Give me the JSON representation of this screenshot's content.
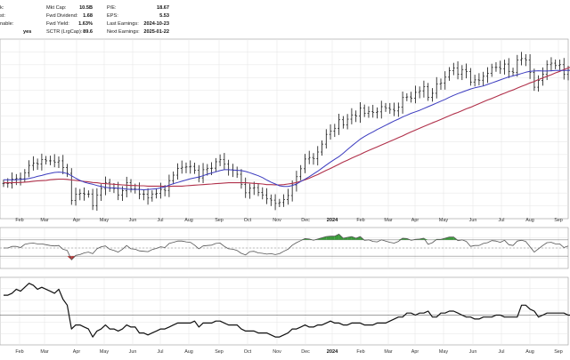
{
  "colors": {
    "background": "#ffffff",
    "grid": "#e3e3e3",
    "price_bars": "#111111",
    "sma_50": "#3b3bbf",
    "sma_200": "#b0304a",
    "indicator_line": "#555555",
    "overbought_fill": "#3a9a3a",
    "oversold_fill": "#c03030",
    "panel_border": "#999999",
    "relative_line": "#111111"
  },
  "header": {
    "left_labels": [
      "k:",
      "st:",
      "nable:",
      ""
    ],
    "left_values": [
      "",
      "",
      "",
      "yes"
    ],
    "fields": [
      {
        "label": "Mkt Cap:",
        "value": "10.5B"
      },
      {
        "label": "Fwd Dividend:",
        "value": "1.68"
      },
      {
        "label": "Fwd Yield:",
        "value": "1.63%"
      },
      {
        "label": "SCTR (LrgCap):",
        "value": "89.6"
      },
      {
        "label": "P/E:",
        "value": "18.67"
      },
      {
        "label": "EPS:",
        "value": "5.53"
      },
      {
        "label": "Last Earnings:",
        "value": "2024-10-23"
      },
      {
        "label": "Next Earnings:",
        "value": "2025-01-22"
      }
    ]
  },
  "chart_data": {
    "type": "line",
    "panels": [
      "price",
      "momentum-oscillator",
      "relative-strength"
    ],
    "x_axis": {
      "labels": [
        "Feb",
        "Mar",
        "Apr",
        "May",
        "Jun",
        "Jul",
        "Aug",
        "Sep",
        "Oct",
        "Nov",
        "Dec",
        "2024",
        "Feb",
        "Mar",
        "Apr",
        "May",
        "Jun",
        "Jul",
        "Aug",
        "Sep"
      ],
      "year_label": "2024"
    },
    "price_series": {
      "style": "ohlc-bars",
      "close": [
        73.6,
        73.6,
        75,
        75.2,
        75.1,
        77.1,
        79.5,
        80.3,
        80,
        81.4,
        81,
        81,
        80.6,
        81,
        78.8,
        76.9,
        68,
        70,
        70.3,
        70.1,
        70.1,
        66.3,
        69.8,
        71.9,
        73.9,
        72,
        71.9,
        69.8,
        71.2,
        73.8,
        71.8,
        71.7,
        70.1,
        70,
        68.8,
        70.1,
        70.3,
        71.6,
        71.3,
        74.5,
        76.3,
        78.5,
        78.9,
        79,
        79.2,
        77.9,
        75.4,
        78.1,
        78.5,
        78.6,
        80.7,
        81.4,
        79.9,
        78.1,
        77.9,
        76.6,
        73.3,
        70.5,
        72,
        72.2,
        70.6,
        69.8,
        68.5,
        68.1,
        67,
        67.3,
        68.3,
        69.6,
        73.1,
        75.8,
        78.4,
        81.6,
        82.1,
        81.7,
        83.9,
        86.5,
        89.7,
        90.8,
        91.7,
        94.5,
        92.8,
        94.7,
        96.1,
        95.7,
        98.3,
        96.6,
        97.2,
        96.9,
        97.1,
        98.8,
        98.3,
        97.9,
        97.4,
        98.7,
        101.8,
        102,
        101.6,
        103.5,
        104,
        105.4,
        101.9,
        103.2,
        106.3,
        106.6,
        108.5,
        110.6,
        111.5,
        109.5,
        111,
        110.3,
        106.9,
        107.6,
        107.5,
        108.8,
        109.8,
        111.7,
        111.7,
        111.3,
        112.8,
        110.4,
        110.1,
        114.1,
        114.6,
        114.1,
        110.1,
        105.2,
        107.4,
        109.5,
        112.6,
        113.1,
        112.3,
        112.6,
        109.4,
        110.8
      ],
      "y_axis_visible": false
    },
    "sma_50": [
      74.8,
      74.8,
      74.8,
      74.8,
      74.9,
      75,
      75.2,
      75.5,
      75.9,
      76.2,
      76.6,
      76.9,
      77.2,
      77.3,
      77.2,
      76.8,
      76.1,
      75.3,
      74.6,
      74,
      73.6,
      73.3,
      72.9,
      72.6,
      72.3,
      72.1,
      72.1,
      72,
      71.9,
      71.7,
      71.6,
      71.6,
      71.6,
      71.5,
      71.6,
      71.7,
      71.8,
      72.1,
      72.5,
      73,
      73.5,
      73.9,
      74.3,
      74.7,
      75.1,
      75.4,
      75.7,
      76.1,
      76.6,
      77,
      77.4,
      77.8,
      78.1,
      78.1,
      78,
      77.9,
      77.8,
      77.5,
      77.1,
      76.6,
      76.1,
      75.5,
      74.7,
      74,
      73.4,
      72.8,
      72.6,
      72.6,
      72.9,
      73.4,
      74.2,
      75,
      75.8,
      76.7,
      77.6,
      78.6,
      79.6,
      80.6,
      81.5,
      82.4,
      83.5,
      84.7,
      85.9,
      87,
      88.1,
      89,
      89.8,
      90.5,
      91.3,
      92,
      92.7,
      93.4,
      94.1,
      94.7,
      95.4,
      96,
      96.6,
      97.1,
      97.6,
      98.2,
      98.8,
      99.4,
      100,
      100.6,
      101.2,
      101.9,
      102.5,
      103.1,
      103.6,
      104.1,
      104.6,
      105,
      105.3,
      105.6,
      106.1,
      106.6,
      107.1,
      107.6,
      108.1,
      108.6,
      108.9,
      109.3,
      109.7,
      110.1,
      110.4,
      110.5,
      110.6,
      110.5,
      110.5,
      110.6,
      110.7,
      110.7,
      110.7,
      110.7,
      110.8
    ],
    "sma_200": [
      73.8,
      73.8,
      73.8,
      73.9,
      73.9,
      74,
      74.1,
      74.3,
      74.4,
      74.5,
      74.6,
      74.8,
      74.9,
      75,
      75,
      74.9,
      74.7,
      74.6,
      74.4,
      74.2,
      74.1,
      73.9,
      73.8,
      73.6,
      73.5,
      73.4,
      73.3,
      73.2,
      73.1,
      73,
      72.9,
      72.9,
      72.8,
      72.8,
      72.7,
      72.7,
      72.7,
      72.7,
      72.6,
      72.6,
      72.7,
      72.7,
      72.7,
      72.8,
      72.9,
      73,
      73.1,
      73.2,
      73.3,
      73.4,
      73.5,
      73.6,
      73.7,
      73.8,
      73.8,
      73.8,
      73.8,
      73.8,
      73.7,
      73.6,
      73.5,
      73.4,
      73.2,
      73.2,
      73.1,
      73.1,
      73.2,
      73.4,
      73.6,
      73.9,
      74.3,
      74.8,
      75.3,
      75.9,
      76.5,
      77.2,
      77.9,
      78.5,
      79.2,
      79.9,
      80.6,
      81.2,
      81.9,
      82.5,
      83.1,
      83.8,
      84.4,
      85,
      85.6,
      86.2,
      86.8,
      87.4,
      88,
      88.6,
      89.2,
      89.9,
      90.5,
      91.1,
      91.7,
      92.3,
      92.9,
      93.5,
      94,
      94.6,
      95.2,
      95.8,
      96.4,
      96.9,
      97.5,
      98.1,
      98.6,
      99.2,
      99.8,
      100.4,
      101,
      101.5,
      102.1,
      102.7,
      103.2,
      103.8,
      104.3,
      104.9,
      105.5,
      106,
      106.6,
      107.1,
      107.7,
      108.2,
      108.8,
      109.3,
      109.9,
      110.4,
      111,
      111.5,
      112
    ],
    "oscillator": {
      "values": [
        50,
        50,
        54,
        54,
        51,
        59,
        61,
        62,
        60,
        60,
        58,
        56,
        55,
        56,
        47,
        44,
        21,
        32,
        34,
        38,
        40,
        36,
        48,
        53,
        55,
        47,
        44,
        40,
        47,
        56,
        48,
        47,
        43,
        42,
        41,
        46,
        49,
        53,
        51,
        61,
        64,
        67,
        67,
        65,
        64,
        57,
        48,
        55,
        56,
        57,
        61,
        62,
        54,
        48,
        47,
        44,
        37,
        33,
        41,
        42,
        38,
        37,
        35,
        36,
        34,
        36,
        42,
        47,
        57,
        63,
        68,
        73,
        72,
        69,
        72,
        75,
        78,
        79,
        79,
        84,
        74,
        76,
        78,
        74,
        78,
        69,
        70,
        66,
        65,
        70,
        67,
        64,
        62,
        66,
        74,
        73,
        69,
        71,
        72,
        74,
        59,
        63,
        71,
        71,
        74,
        77,
        77,
        68,
        70,
        66,
        54,
        56,
        56,
        61,
        63,
        68,
        67,
        64,
        69,
        58,
        56,
        67,
        69,
        66,
        53,
        40,
        48,
        56,
        63,
        64,
        60,
        60,
        51,
        55
      ],
      "reference_lines": [
        70,
        50,
        30
      ],
      "y_range": [
        0,
        100
      ]
    },
    "relative_strength": {
      "values": [
        0.95,
        0.95,
        0.96,
        0.98,
        0.97,
        0.99,
        1.01,
        1,
        0.98,
        0.99,
        0.98,
        0.97,
        0.96,
        0.98,
        0.93,
        0.9,
        0.78,
        0.8,
        0.8,
        0.79,
        0.78,
        0.74,
        0.77,
        0.78,
        0.8,
        0.78,
        0.78,
        0.77,
        0.78,
        0.8,
        0.79,
        0.79,
        0.76,
        0.76,
        0.75,
        0.76,
        0.77,
        0.78,
        0.78,
        0.79,
        0.8,
        0.81,
        0.81,
        0.81,
        0.81,
        0.82,
        0.79,
        0.81,
        0.81,
        0.81,
        0.82,
        0.82,
        0.81,
        0.8,
        0.8,
        0.8,
        0.78,
        0.77,
        0.77,
        0.77,
        0.76,
        0.76,
        0.76,
        0.75,
        0.74,
        0.74,
        0.75,
        0.76,
        0.78,
        0.78,
        0.79,
        0.8,
        0.79,
        0.79,
        0.8,
        0.8,
        0.81,
        0.82,
        0.81,
        0.81,
        0.8,
        0.8,
        0.81,
        0.81,
        0.81,
        0.8,
        0.8,
        0.8,
        0.81,
        0.81,
        0.81,
        0.82,
        0.83,
        0.84,
        0.84,
        0.86,
        0.86,
        0.85,
        0.86,
        0.86,
        0.87,
        0.84,
        0.84,
        0.86,
        0.86,
        0.87,
        0.87,
        0.86,
        0.85,
        0.84,
        0.84,
        0.83,
        0.83,
        0.84,
        0.84,
        0.84,
        0.85,
        0.85,
        0.84,
        0.84,
        0.84,
        0.84,
        0.9,
        0.9,
        0.88,
        0.87,
        0.84,
        0.85,
        0.86,
        0.86,
        0.86,
        0.86,
        0.86,
        0.85,
        0.85
      ],
      "reference_line": 0.85
    },
    "grid": true,
    "legend": "none"
  }
}
